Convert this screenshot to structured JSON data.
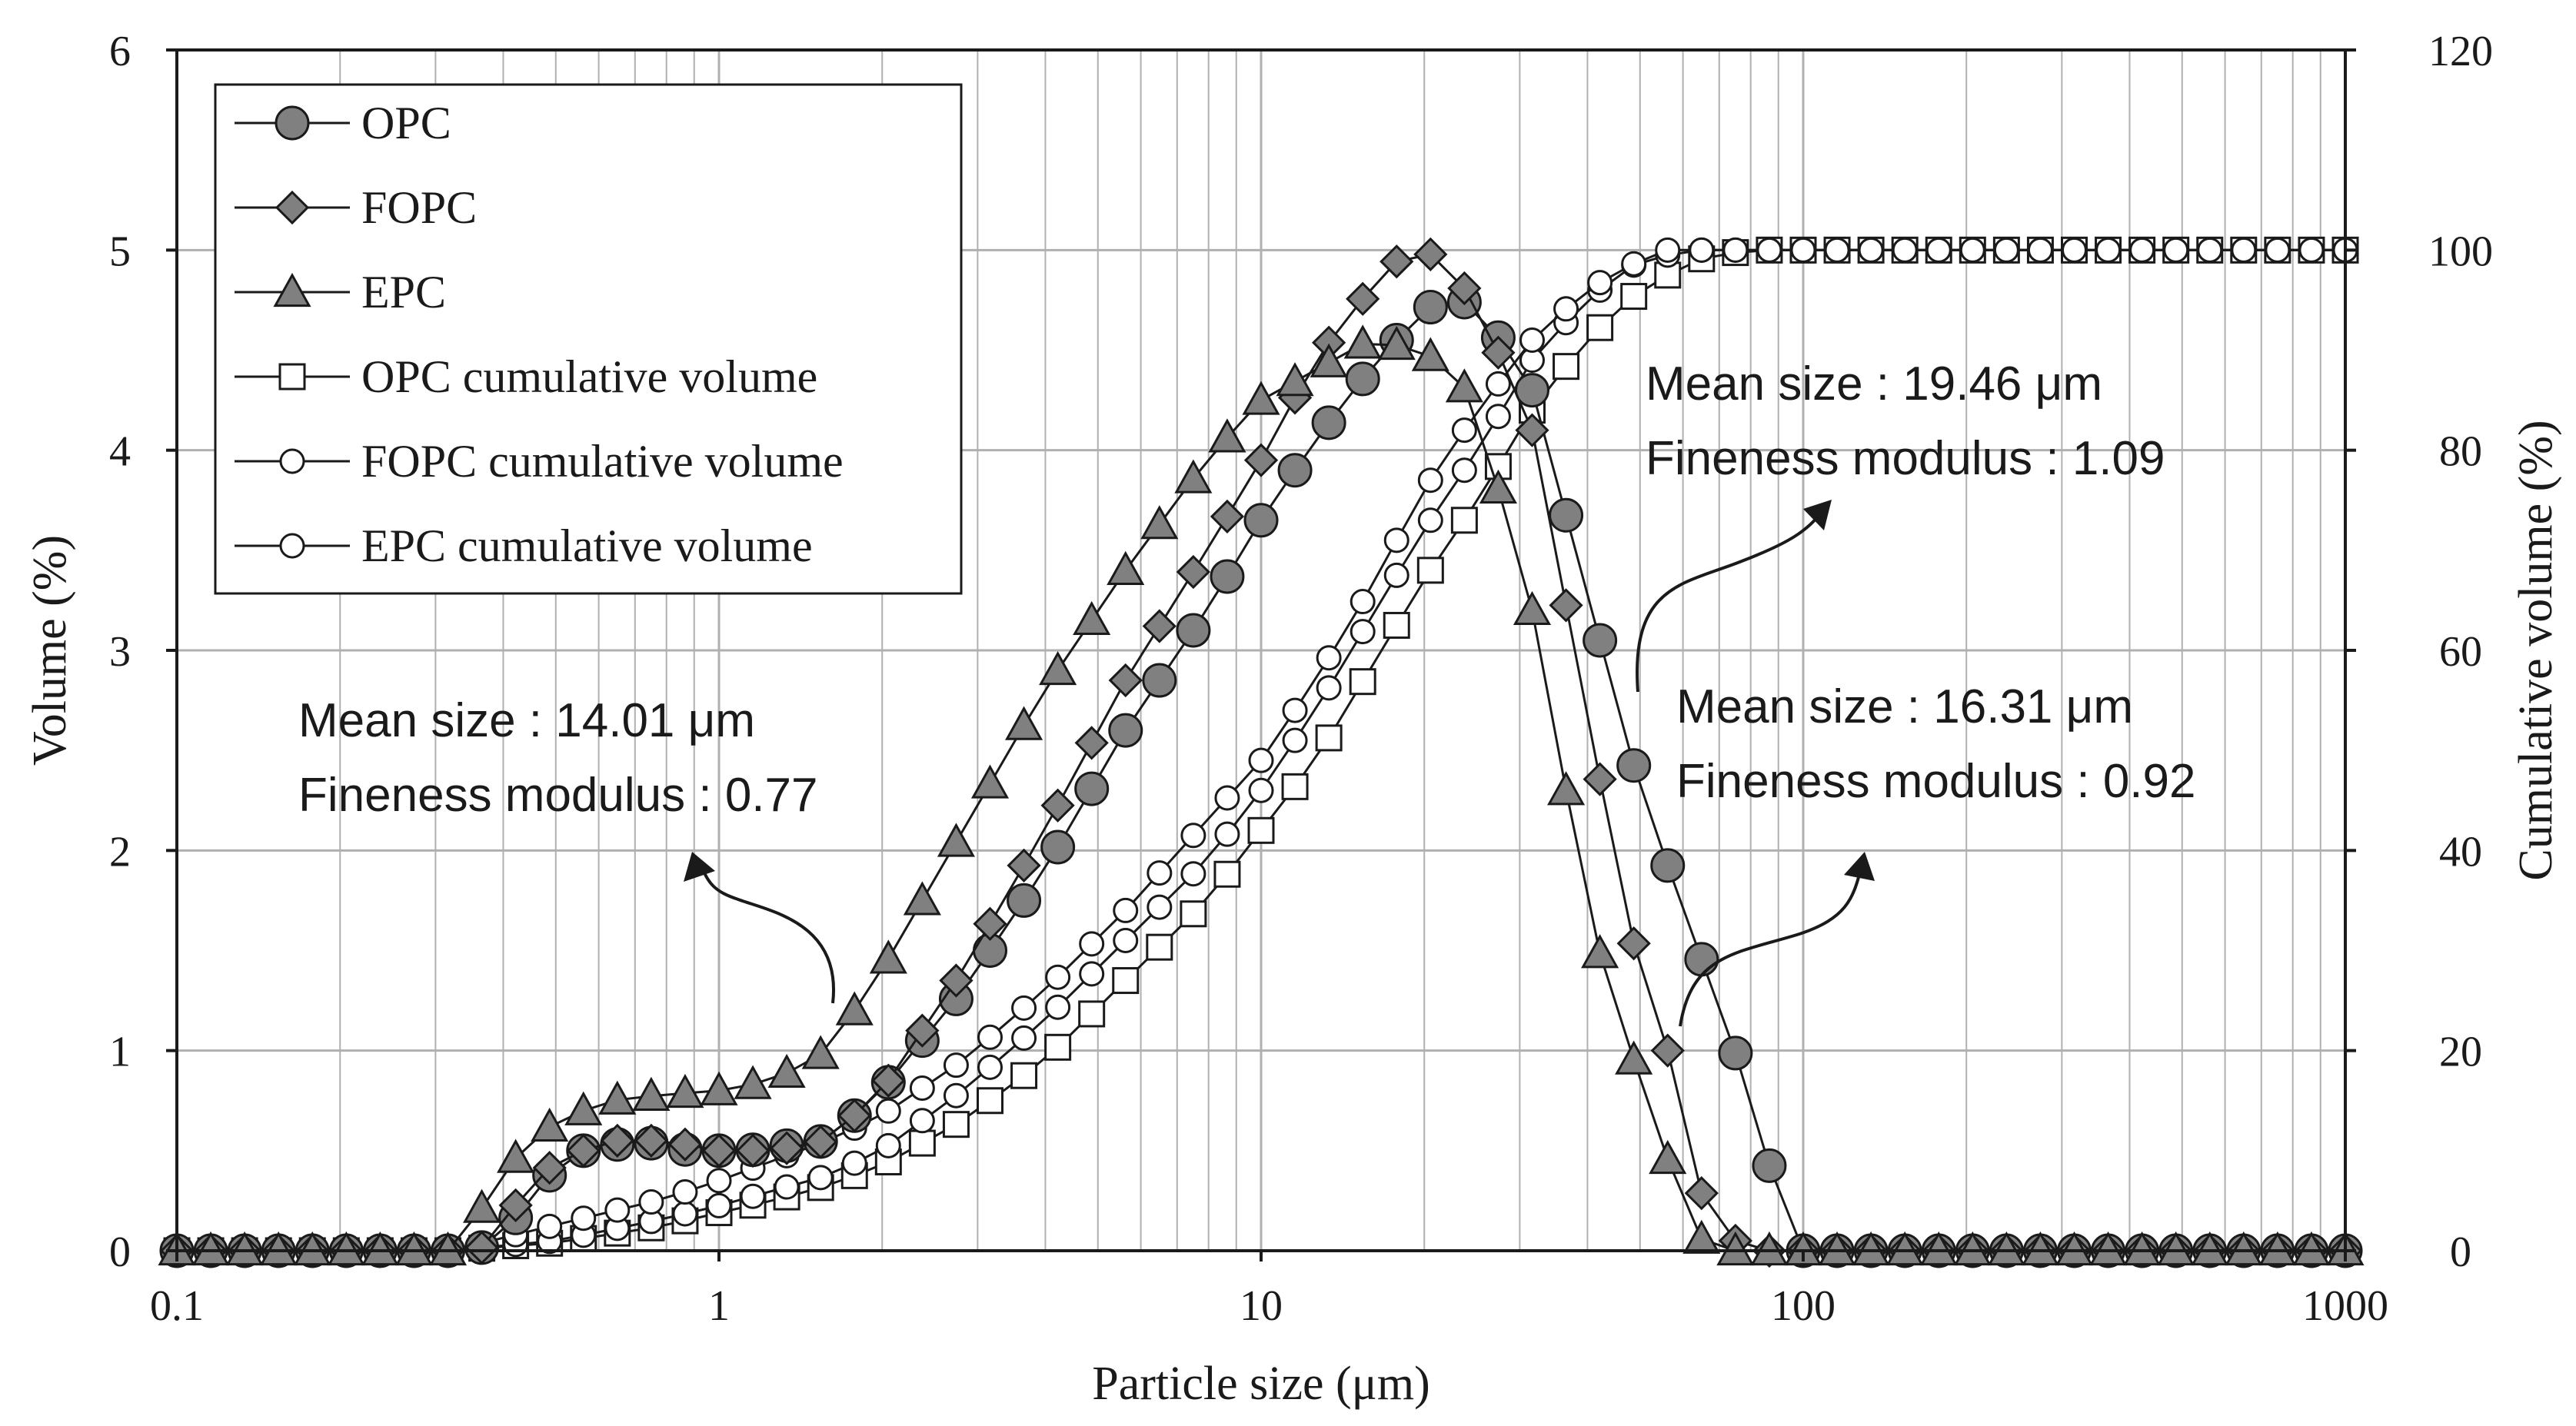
{
  "chart_data": {
    "type": "scatter",
    "x_scale": "log",
    "xlabel": "Particle size (μm)",
    "ylabel": "Volume (%)",
    "y2label": "Cumulative volume (%)",
    "xlim": [
      0.1,
      1000
    ],
    "ylim": [
      0,
      6
    ],
    "y2lim": [
      0,
      120
    ],
    "x_ticks": [
      "0.1",
      "1",
      "10",
      "100",
      "1000"
    ],
    "y_ticks": [
      "0",
      "1",
      "2",
      "3",
      "4",
      "5",
      "6"
    ],
    "y2_ticks": [
      "0",
      "20",
      "40",
      "60",
      "80",
      "100",
      "120"
    ],
    "grid": true,
    "legend_position": "top-left",
    "bins_per_decade": 16,
    "series": [
      {
        "name": "OPC",
        "marker": "circle-filled",
        "axis": "left",
        "curve": [
          [
            -1,
            0
          ],
          [
            -0.5,
            0
          ],
          [
            -0.42,
            0.02
          ],
          [
            -0.37,
            0.18
          ],
          [
            -0.3,
            0.42
          ],
          [
            -0.25,
            0.5
          ],
          [
            -0.15,
            0.55
          ],
          [
            -0.05,
            0.5
          ],
          [
            0.05,
            0.5
          ],
          [
            0.2,
            0.55
          ],
          [
            0.3,
            0.8
          ],
          [
            0.45,
            1.3
          ],
          [
            0.6,
            1.9
          ],
          [
            0.75,
            2.6
          ],
          [
            0.9,
            3.2
          ],
          [
            1.0,
            3.65
          ],
          [
            1.1,
            4.05
          ],
          [
            1.2,
            4.4
          ],
          [
            1.3,
            4.7
          ],
          [
            1.35,
            4.76
          ],
          [
            1.4,
            4.72
          ],
          [
            1.5,
            4.3
          ],
          [
            1.6,
            3.3
          ],
          [
            1.7,
            2.3
          ],
          [
            1.8,
            1.55
          ],
          [
            1.9,
            0.8
          ],
          [
            1.95,
            0.3
          ],
          [
            2.0,
            0
          ],
          [
            3,
            0
          ]
        ]
      },
      {
        "name": "FOPC",
        "marker": "diamond-filled",
        "axis": "left",
        "curve": [
          [
            -1,
            0
          ],
          [
            -0.5,
            0
          ],
          [
            -0.42,
            0.02
          ],
          [
            -0.37,
            0.25
          ],
          [
            -0.3,
            0.45
          ],
          [
            -0.2,
            0.55
          ],
          [
            -0.1,
            0.55
          ],
          [
            0.0,
            0.5
          ],
          [
            0.1,
            0.5
          ],
          [
            0.2,
            0.55
          ],
          [
            0.3,
            0.8
          ],
          [
            0.45,
            1.4
          ],
          [
            0.6,
            2.1
          ],
          [
            0.75,
            2.85
          ],
          [
            0.9,
            3.5
          ],
          [
            1.0,
            3.95
          ],
          [
            1.1,
            4.45
          ],
          [
            1.2,
            4.8
          ],
          [
            1.27,
            5.0
          ],
          [
            1.33,
            4.97
          ],
          [
            1.4,
            4.72
          ],
          [
            1.5,
            4.1
          ],
          [
            1.6,
            2.7
          ],
          [
            1.68,
            1.6
          ],
          [
            1.75,
            1.0
          ],
          [
            1.8,
            0.35
          ],
          [
            1.85,
            0.1
          ],
          [
            1.9,
            0
          ],
          [
            3,
            0
          ]
        ]
      },
      {
        "name": "EPC",
        "marker": "triangle-filled",
        "axis": "left",
        "curve": [
          [
            -1,
            0
          ],
          [
            -0.5,
            0
          ],
          [
            -0.45,
            0.15
          ],
          [
            -0.4,
            0.4
          ],
          [
            -0.3,
            0.65
          ],
          [
            -0.2,
            0.75
          ],
          [
            -0.1,
            0.78
          ],
          [
            0.0,
            0.8
          ],
          [
            0.1,
            0.85
          ],
          [
            0.2,
            1.0
          ],
          [
            0.3,
            1.4
          ],
          [
            0.45,
            2.1
          ],
          [
            0.6,
            2.8
          ],
          [
            0.75,
            3.4
          ],
          [
            0.9,
            3.95
          ],
          [
            1.0,
            4.25
          ],
          [
            1.1,
            4.4
          ],
          [
            1.2,
            4.55
          ],
          [
            1.3,
            4.5
          ],
          [
            1.38,
            4.3
          ],
          [
            1.45,
            3.7
          ],
          [
            1.5,
            3.2
          ],
          [
            1.55,
            2.5
          ],
          [
            1.6,
            1.7
          ],
          [
            1.67,
            1.1
          ],
          [
            1.73,
            0.6
          ],
          [
            1.8,
            0.1
          ],
          [
            1.83,
            0
          ],
          [
            3,
            0
          ]
        ]
      },
      {
        "name": "OPC cumulative volume",
        "marker": "square-open",
        "axis": "right",
        "curve": [
          [
            -1,
            0
          ],
          [
            -0.5,
            0
          ],
          [
            -0.3,
            0.8
          ],
          [
            -0.1,
            2.5
          ],
          [
            0.0,
            3.8
          ],
          [
            0.1,
            5.0
          ],
          [
            0.2,
            6.5
          ],
          [
            0.3,
            8.5
          ],
          [
            0.45,
            13
          ],
          [
            0.6,
            19
          ],
          [
            0.75,
            27
          ],
          [
            0.9,
            35
          ],
          [
            1.0,
            42
          ],
          [
            1.1,
            49
          ],
          [
            1.2,
            58
          ],
          [
            1.3,
            67
          ],
          [
            1.4,
            75
          ],
          [
            1.5,
            84
          ],
          [
            1.6,
            91
          ],
          [
            1.7,
            96
          ],
          [
            1.8,
            99
          ],
          [
            1.9,
            100
          ],
          [
            3,
            100
          ]
        ]
      },
      {
        "name": "FOPC cumulative volume",
        "marker": "circle-open",
        "axis": "right",
        "curve": [
          [
            -1,
            0
          ],
          [
            -0.5,
            0
          ],
          [
            -0.3,
            1.0
          ],
          [
            -0.1,
            3.2
          ],
          [
            0.0,
            4.5
          ],
          [
            0.1,
            6.0
          ],
          [
            0.2,
            7.5
          ],
          [
            0.3,
            10
          ],
          [
            0.45,
            16
          ],
          [
            0.6,
            23
          ],
          [
            0.75,
            31
          ],
          [
            0.9,
            39
          ],
          [
            1.0,
            46
          ],
          [
            1.1,
            54
          ],
          [
            1.2,
            63
          ],
          [
            1.3,
            72
          ],
          [
            1.4,
            80
          ],
          [
            1.5,
            89
          ],
          [
            1.6,
            95
          ],
          [
            1.7,
            99
          ],
          [
            1.8,
            100
          ],
          [
            3,
            100
          ]
        ]
      },
      {
        "name": "EPC cumulative volume",
        "marker": "circle-open",
        "axis": "right",
        "curve": [
          [
            -1,
            0
          ],
          [
            -0.5,
            0
          ],
          [
            -0.45,
            0.6
          ],
          [
            -0.3,
            2.6
          ],
          [
            -0.1,
            5.2
          ],
          [
            0.0,
            7.0
          ],
          [
            0.1,
            9.0
          ],
          [
            0.2,
            11
          ],
          [
            0.3,
            13.5
          ],
          [
            0.45,
            19
          ],
          [
            0.6,
            26
          ],
          [
            0.75,
            34
          ],
          [
            0.9,
            43
          ],
          [
            1.0,
            49
          ],
          [
            1.1,
            57
          ],
          [
            1.2,
            66
          ],
          [
            1.3,
            76
          ],
          [
            1.4,
            84
          ],
          [
            1.5,
            91
          ],
          [
            1.6,
            96
          ],
          [
            1.7,
            99
          ],
          [
            1.75,
            100
          ],
          [
            3,
            100
          ]
        ]
      }
    ],
    "annotations": [
      {
        "id": "epc",
        "mean_size": "Mean size : 14.01 μm",
        "fineness": "Fineness modulus : 0.77"
      },
      {
        "id": "opc",
        "mean_size": "Mean size : 19.46 μm",
        "fineness": "Fineness modulus : 1.09"
      },
      {
        "id": "fopc",
        "mean_size": "Mean size : 16.31 μm",
        "fineness": "Fineness modulus : 0.92"
      }
    ]
  },
  "colors": {
    "filled_marker": "#808080",
    "marker_stroke": "#1a1a1a",
    "open_marker_fill": "#ffffff",
    "grid": "#b0b0b0",
    "axis": "#1a1a1a"
  }
}
